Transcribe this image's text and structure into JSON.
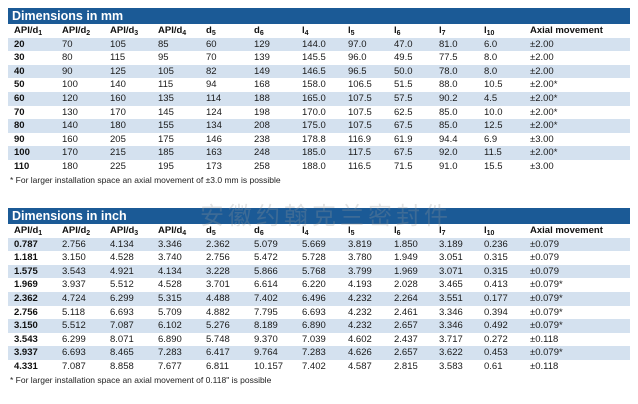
{
  "columns": [
    {
      "main": "API/d",
      "sub": "1",
      "after": ""
    },
    {
      "main": "API/d",
      "sub": "2",
      "after": ""
    },
    {
      "main": "API/d",
      "sub": "3",
      "after": ""
    },
    {
      "main": "API/d",
      "sub": "4",
      "after": ""
    },
    {
      "main": "d",
      "sub": "5",
      "after": ""
    },
    {
      "main": "d",
      "sub": "6",
      "after": ""
    },
    {
      "main": "l",
      "sub": "4",
      "after": ""
    },
    {
      "main": "l",
      "sub": "5",
      "after": ""
    },
    {
      "main": "l",
      "sub": "6",
      "after": ""
    },
    {
      "main": "l",
      "sub": "7",
      "after": ""
    },
    {
      "main": "l",
      "sub": "10",
      "after": ""
    },
    {
      "main": "Axial movement",
      "sub": "",
      "after": ""
    }
  ],
  "mm": {
    "title": "Dimensions in mm",
    "rows": [
      [
        "20",
        "70",
        "105",
        "85",
        "60",
        "129",
        "144.0",
        "97.0",
        "47.0",
        "81.0",
        "6.0",
        "±2.00"
      ],
      [
        "30",
        "80",
        "115",
        "95",
        "70",
        "139",
        "145.5",
        "96.0",
        "49.5",
        "77.5",
        "8.0",
        "±2.00"
      ],
      [
        "40",
        "90",
        "125",
        "105",
        "82",
        "149",
        "146.5",
        "96.5",
        "50.0",
        "78.0",
        "8.0",
        "±2.00"
      ],
      [
        "50",
        "100",
        "140",
        "115",
        "94",
        "168",
        "158.0",
        "106.5",
        "51.5",
        "88.0",
        "10.5",
        "±2.00*"
      ],
      [
        "60",
        "120",
        "160",
        "135",
        "114",
        "188",
        "165.0",
        "107.5",
        "57.5",
        "90.2",
        "4.5",
        "±2.00*"
      ],
      [
        "70",
        "130",
        "170",
        "145",
        "124",
        "198",
        "170.0",
        "107.5",
        "62.5",
        "85.0",
        "10.0",
        "±2.00*"
      ],
      [
        "80",
        "140",
        "180",
        "155",
        "134",
        "208",
        "175.0",
        "107.5",
        "67.5",
        "85.0",
        "12.5",
        "±2.00*"
      ],
      [
        "90",
        "160",
        "205",
        "175",
        "146",
        "238",
        "178.8",
        "116.9",
        "61.9",
        "94.4",
        "6.9",
        "±3.00"
      ],
      [
        "100",
        "170",
        "215",
        "185",
        "163",
        "248",
        "185.0",
        "117.5",
        "67.5",
        "92.0",
        "11.5",
        "±2.00*"
      ],
      [
        "110",
        "180",
        "225",
        "195",
        "173",
        "258",
        "188.0",
        "116.5",
        "71.5",
        "91.0",
        "15.5",
        "±3.00"
      ]
    ],
    "footnote": "* For larger installation space an axial movement of ±3.0 mm is possible"
  },
  "inch": {
    "title": "Dimensions in inch",
    "rows": [
      [
        "0.787",
        "2.756",
        "4.134",
        "3.346",
        "2.362",
        "5.079",
        "5.669",
        "3.819",
        "1.850",
        "3.189",
        "0.236",
        "±0.079"
      ],
      [
        "1.181",
        "3.150",
        "4.528",
        "3.740",
        "2.756",
        "5.472",
        "5.728",
        "3.780",
        "1.949",
        "3.051",
        "0.315",
        "±0.079"
      ],
      [
        "1.575",
        "3.543",
        "4.921",
        "4.134",
        "3.228",
        "5.866",
        "5.768",
        "3.799",
        "1.969",
        "3.071",
        "0.315",
        "±0.079"
      ],
      [
        "1.969",
        "3.937",
        "5.512",
        "4.528",
        "3.701",
        "6.614",
        "6.220",
        "4.193",
        "2.028",
        "3.465",
        "0.413",
        "±0.079*"
      ],
      [
        "2.362",
        "4.724",
        "6.299",
        "5.315",
        "4.488",
        "7.402",
        "6.496",
        "4.232",
        "2.264",
        "3.551",
        "0.177",
        "±0.079*"
      ],
      [
        "2.756",
        "5.118",
        "6.693",
        "5.709",
        "4.882",
        "7.795",
        "6.693",
        "4.232",
        "2.461",
        "3.346",
        "0.394",
        "±0.079*"
      ],
      [
        "3.150",
        "5.512",
        "7.087",
        "6.102",
        "5.276",
        "8.189",
        "6.890",
        "4.232",
        "2.657",
        "3.346",
        "0.492",
        "±0.079*"
      ],
      [
        "3.543",
        "6.299",
        "8.071",
        "6.890",
        "5.748",
        "9.370",
        "7.039",
        "4.602",
        "2.437",
        "3.717",
        "0.272",
        "±0.118"
      ],
      [
        "3.937",
        "6.693",
        "8.465",
        "7.283",
        "6.417",
        "9.764",
        "7.283",
        "4.626",
        "2.657",
        "3.622",
        "0.453",
        "±0.079*"
      ],
      [
        "4.331",
        "7.087",
        "8.858",
        "7.677",
        "6.811",
        "10.157",
        "7.402",
        "4.587",
        "2.815",
        "3.583",
        "0.61",
        "±0.118"
      ]
    ],
    "footnote": "* For larger installation space an axial movement of 0.118\" is possible"
  },
  "watermark": "安徽约翰克兰密封件"
}
